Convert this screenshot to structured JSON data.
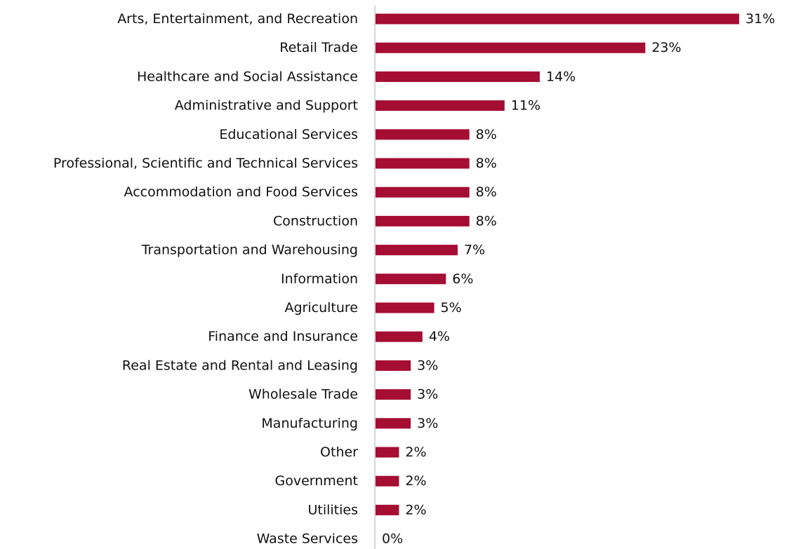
{
  "chart_data": {
    "type": "bar",
    "orientation": "horizontal",
    "title": "",
    "xlabel": "",
    "ylabel": "",
    "categories": [
      "Arts, Entertainment, and Recreation",
      "Retail Trade",
      "Healthcare and Social Assistance",
      "Administrative and Support",
      "Educational Services",
      "Professional, Scientific and Technical Services",
      "Accommodation and Food Services",
      "Construction",
      "Transportation and Warehousing",
      "Information",
      "Agriculture",
      "Finance and Insurance",
      "Real Estate and Rental and Leasing",
      "Wholesale Trade",
      "Manufacturing",
      "Other",
      "Government",
      "Utilities",
      "Waste Services"
    ],
    "values": [
      31,
      23,
      14,
      11,
      8,
      8,
      8,
      8,
      7,
      6,
      5,
      4,
      3,
      3,
      3,
      2,
      2,
      2,
      0
    ],
    "value_labels": [
      "31%",
      "23%",
      "14%",
      "11%",
      "8%",
      "8%",
      "8%",
      "8%",
      "7%",
      "6%",
      "5%",
      "4%",
      "3%",
      "3%",
      "3%",
      "2%",
      "2%",
      "2%",
      "0%"
    ],
    "unit": "%",
    "xlim": [
      0,
      31
    ],
    "bar_color": "#a50d33",
    "axis_color": "#c8c8c8",
    "grid": false,
    "legend": "none"
  }
}
